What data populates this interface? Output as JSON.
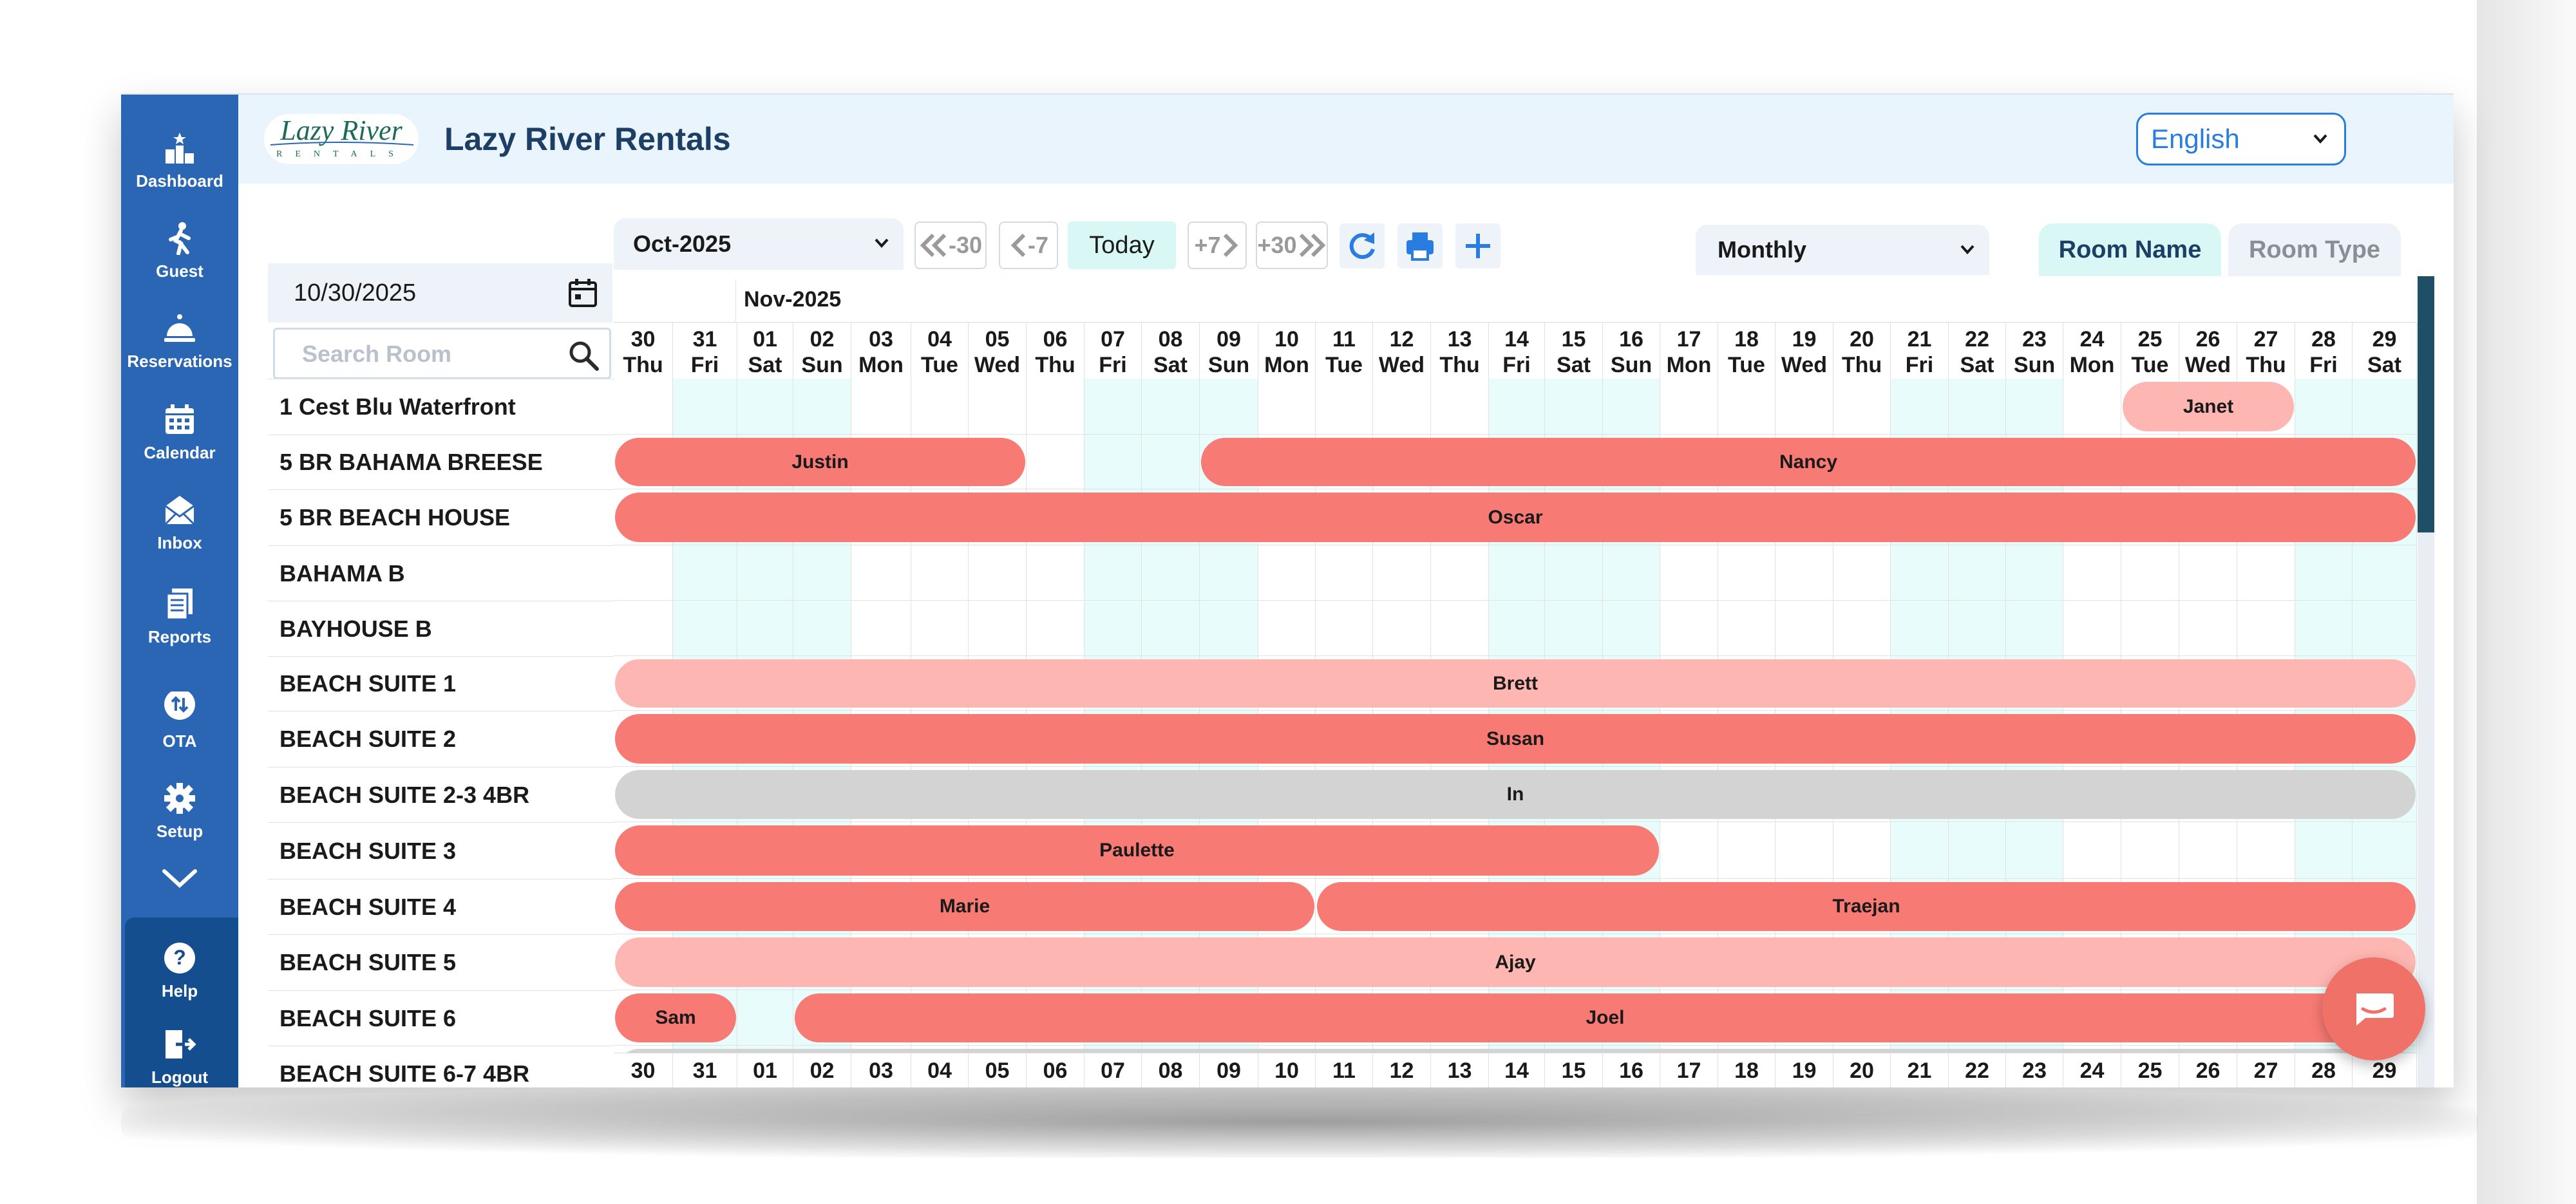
{
  "app": {
    "title": "Lazy River Rentals",
    "logo_text": "Lazy River",
    "logo_subtext": "RENTALS"
  },
  "sidebar": {
    "items": [
      {
        "label": "Dashboard",
        "icon": "dashboard-icon"
      },
      {
        "label": "Guest",
        "icon": "guest-icon"
      },
      {
        "label": "Reservations",
        "icon": "reservations-icon"
      },
      {
        "label": "Calendar",
        "icon": "calendar-icon"
      },
      {
        "label": "Inbox",
        "icon": "inbox-icon"
      },
      {
        "label": "Reports",
        "icon": "reports-icon"
      },
      {
        "label": "OTA",
        "icon": "ota-icon"
      },
      {
        "label": "Setup",
        "icon": "gear-icon"
      }
    ],
    "bottom": [
      {
        "label": "Help",
        "icon": "help-icon"
      },
      {
        "label": "Logout",
        "icon": "logout-icon"
      }
    ]
  },
  "header": {
    "language": "English"
  },
  "toolbar": {
    "month": "Oct-2025",
    "back30": "-30",
    "back7": "-7",
    "today": "Today",
    "fwd7": "+7",
    "fwd30": "+30",
    "view": "Monthly",
    "tab_room_name": "Room Name",
    "tab_room_type": "Room Type"
  },
  "filters": {
    "date": "10/30/2025",
    "search_placeholder": "Search Room"
  },
  "calendar": {
    "month_label": "Nov-2025",
    "days": [
      {
        "d": "30",
        "w": "Thu"
      },
      {
        "d": "31",
        "w": "Fri"
      },
      {
        "d": "01",
        "w": "Sat"
      },
      {
        "d": "02",
        "w": "Sun"
      },
      {
        "d": "03",
        "w": "Mon"
      },
      {
        "d": "04",
        "w": "Tue"
      },
      {
        "d": "05",
        "w": "Wed"
      },
      {
        "d": "06",
        "w": "Thu"
      },
      {
        "d": "07",
        "w": "Fri"
      },
      {
        "d": "08",
        "w": "Sat"
      },
      {
        "d": "09",
        "w": "Sun"
      },
      {
        "d": "10",
        "w": "Mon"
      },
      {
        "d": "11",
        "w": "Tue"
      },
      {
        "d": "12",
        "w": "Wed"
      },
      {
        "d": "13",
        "w": "Thu"
      },
      {
        "d": "14",
        "w": "Fri"
      },
      {
        "d": "15",
        "w": "Sat"
      },
      {
        "d": "16",
        "w": "Sun"
      },
      {
        "d": "17",
        "w": "Mon"
      },
      {
        "d": "18",
        "w": "Tue"
      },
      {
        "d": "19",
        "w": "Wed"
      },
      {
        "d": "20",
        "w": "Thu"
      },
      {
        "d": "21",
        "w": "Fri"
      },
      {
        "d": "22",
        "w": "Sat"
      },
      {
        "d": "23",
        "w": "Sun"
      },
      {
        "d": "24",
        "w": "Mon"
      },
      {
        "d": "25",
        "w": "Tue"
      },
      {
        "d": "26",
        "w": "Wed"
      },
      {
        "d": "27",
        "w": "Thu"
      },
      {
        "d": "28",
        "w": "Fri"
      },
      {
        "d": "29",
        "w": "Sat"
      }
    ],
    "rooms": [
      "1 Cest Blu Waterfront",
      "5 BR BAHAMA BREESE",
      "5 BR BEACH HOUSE",
      "BAHAMA B",
      "BAYHOUSE B",
      "BEACH SUITE 1",
      "BEACH SUITE 2",
      "BEACH SUITE 2-3 4BR",
      "BEACH SUITE 3",
      "BEACH SUITE 4",
      "BEACH SUITE 5",
      "BEACH SUITE 6",
      "BEACH SUITE 6-7 4BR"
    ],
    "reservations": [
      {
        "room": 0,
        "start": 26,
        "end": 29,
        "guest": "Janet",
        "status": "light"
      },
      {
        "room": 1,
        "start": 0,
        "end": 7,
        "guest": "Justin",
        "status": "booked"
      },
      {
        "room": 1,
        "start": 10,
        "end": 31,
        "guest": "Nancy",
        "status": "booked"
      },
      {
        "room": 2,
        "start": 0,
        "end": 31,
        "guest": "Oscar",
        "status": "booked"
      },
      {
        "room": 5,
        "start": 0,
        "end": 31,
        "guest": "Brett",
        "status": "light"
      },
      {
        "room": 6,
        "start": 0,
        "end": 31,
        "guest": "Susan",
        "status": "booked"
      },
      {
        "room": 7,
        "start": 0,
        "end": 31,
        "guest": "In",
        "status": "gray"
      },
      {
        "room": 8,
        "start": 0,
        "end": 18,
        "guest": "Paulette",
        "status": "booked"
      },
      {
        "room": 9,
        "start": 0,
        "end": 12,
        "guest": "Marie",
        "status": "booked"
      },
      {
        "room": 9,
        "start": 12,
        "end": 31,
        "guest": "Traejan",
        "status": "booked"
      },
      {
        "room": 10,
        "start": 0,
        "end": 31,
        "guest": "Ajay",
        "status": "light"
      },
      {
        "room": 11,
        "start": 0,
        "end": 2,
        "guest": "Sam",
        "status": "booked"
      },
      {
        "room": 11,
        "start": 3,
        "end": 31,
        "guest": "Joel",
        "status": "booked"
      },
      {
        "room": 12,
        "start": 0,
        "end": 31,
        "guest": "",
        "status": "gray"
      }
    ],
    "weekend_cols": [
      1,
      2,
      3,
      8,
      9,
      10,
      15,
      16,
      17,
      22,
      23,
      24,
      29,
      30
    ]
  },
  "colors": {
    "booked": "#f87a74",
    "light": "#fdb6b1",
    "gray": "#d3d3d3",
    "sidebar": "#2a66b4",
    "accent": "#2a7de0"
  }
}
